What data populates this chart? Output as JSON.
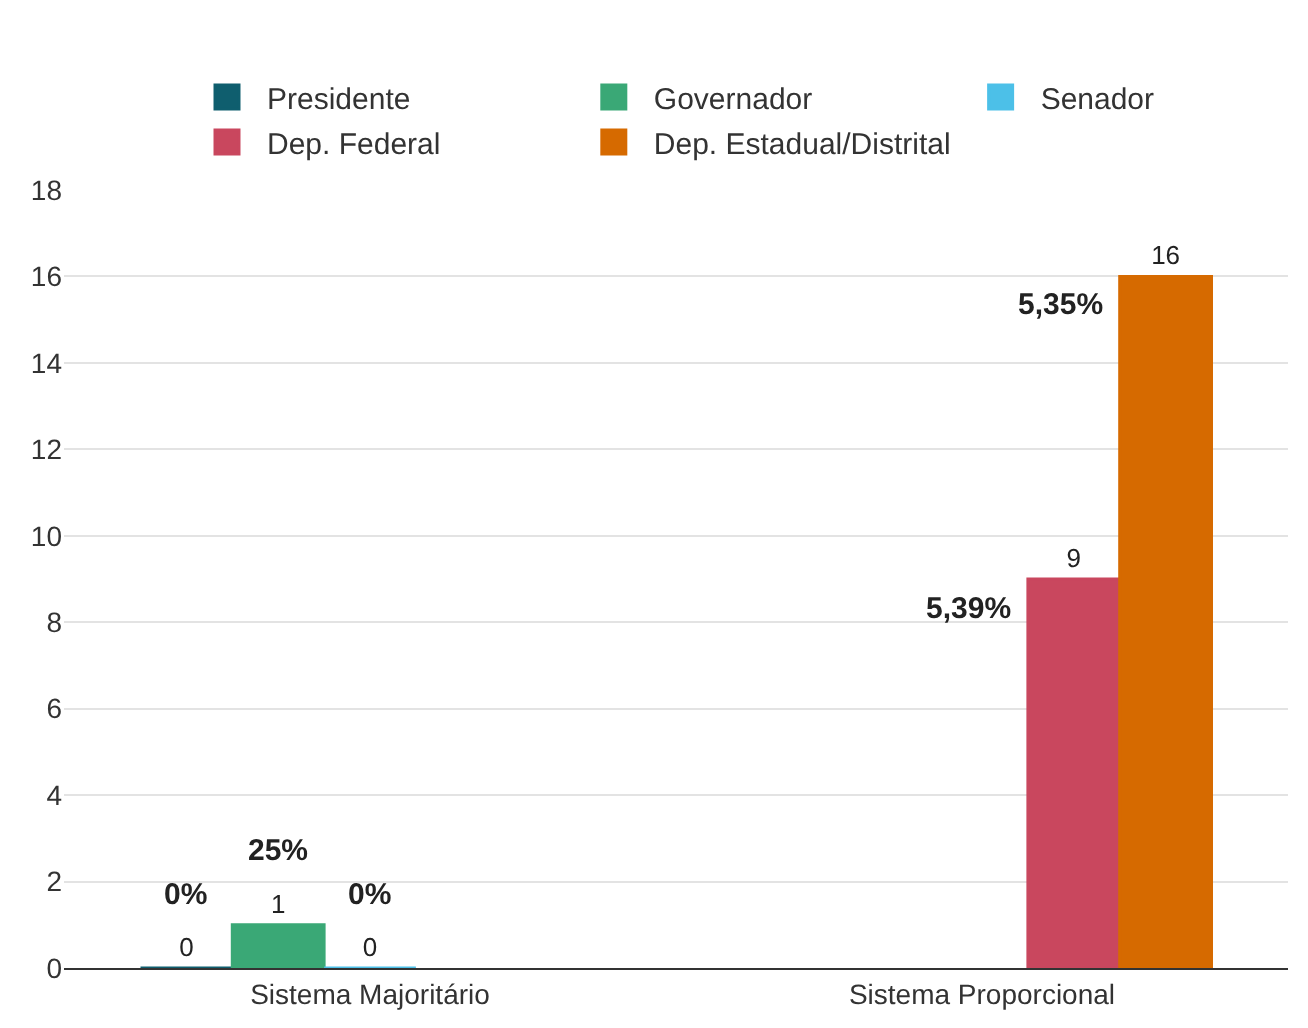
{
  "chart_data": {
    "type": "bar",
    "categories": [
      "Sistema Majoritário",
      "Sistema Proporcional"
    ],
    "series": [
      {
        "name": "Presidente",
        "color": "#0f5e6e",
        "values": [
          0,
          null
        ]
      },
      {
        "name": "Governador",
        "color": "#3aa876",
        "values": [
          1,
          null
        ]
      },
      {
        "name": "Senador",
        "color": "#4cc0e8",
        "values": [
          0,
          null
        ]
      },
      {
        "name": "Dep. Federal",
        "color": "#c9475e",
        "values": [
          null,
          9
        ]
      },
      {
        "name": "Dep. Estadual/Distrital",
        "color": "#d66a00",
        "values": [
          null,
          16
        ]
      }
    ],
    "annotations": [
      "0%",
      "25%",
      "0%",
      "5,39%",
      "5,35%"
    ],
    "ylim": [
      0,
      18
    ],
    "yticks": [
      0,
      2,
      4,
      6,
      8,
      10,
      12,
      14,
      16,
      18
    ],
    "grid": "y",
    "legend": "top",
    "data_labels": true
  }
}
